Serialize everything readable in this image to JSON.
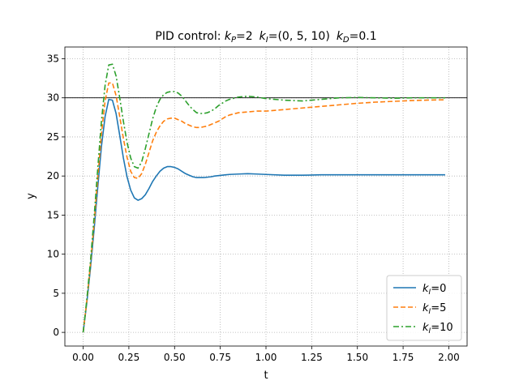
{
  "chart_data": {
    "type": "line",
    "title": "PID control: k_P=2  k_I=(0, 5, 10)  k_D=0.1",
    "title_parts": {
      "prefix": "PID control: ",
      "kp_symbol": "k",
      "kp_sub": "P",
      "kp_value": "=2",
      "ki_symbol": "k",
      "ki_sub": "I",
      "ki_value": "=(0, 5, 10)",
      "kd_symbol": "k",
      "kd_sub": "D",
      "kd_value": "=0.1"
    },
    "xlabel": "t",
    "ylabel": "y",
    "xlim": [
      -0.1,
      2.1
    ],
    "ylim": [
      -1.75,
      36.5
    ],
    "xticks": [
      0.0,
      0.25,
      0.5,
      0.75,
      1.0,
      1.25,
      1.5,
      1.75,
      2.0
    ],
    "xtick_labels": [
      "0.00",
      "0.25",
      "0.50",
      "0.75",
      "1.00",
      "1.25",
      "1.50",
      "1.75",
      "2.00"
    ],
    "yticks": [
      0,
      5,
      10,
      15,
      20,
      25,
      30,
      35
    ],
    "ytick_labels": [
      "0",
      "5",
      "10",
      "15",
      "20",
      "25",
      "30",
      "35"
    ],
    "grid": true,
    "reference_line": {
      "y": 30,
      "color": "#000000"
    },
    "legend_placement": "lower-right",
    "series": [
      {
        "name": "k_I=0",
        "legend_symbol": "k",
        "legend_sub": "I",
        "legend_value": "=0",
        "color": "#1f77b4",
        "dash": "solid",
        "x": [
          0,
          0.02,
          0.04,
          0.06,
          0.08,
          0.1,
          0.12,
          0.14,
          0.16,
          0.18,
          0.2,
          0.22,
          0.24,
          0.26,
          0.28,
          0.3,
          0.32,
          0.34,
          0.36,
          0.38,
          0.4,
          0.42,
          0.44,
          0.46,
          0.48,
          0.5,
          0.52,
          0.54,
          0.56,
          0.58,
          0.6,
          0.62,
          0.64,
          0.66,
          0.68,
          0.7,
          0.72,
          0.74,
          0.76,
          0.78,
          0.8,
          0.85,
          0.9,
          0.95,
          1.0,
          1.1,
          1.2,
          1.3,
          1.4,
          1.5,
          1.6,
          1.7,
          1.8,
          1.9,
          1.98
        ],
        "values": [
          0,
          3.8,
          8.2,
          13.2,
          18.6,
          23.8,
          27.6,
          29.8,
          29.7,
          28.0,
          25.2,
          22.3,
          19.9,
          18.2,
          17.2,
          16.9,
          17.1,
          17.6,
          18.4,
          19.3,
          20.0,
          20.6,
          21.0,
          21.2,
          21.2,
          21.1,
          20.9,
          20.6,
          20.3,
          20.1,
          19.9,
          19.8,
          19.8,
          19.8,
          19.85,
          19.9,
          20.0,
          20.05,
          20.1,
          20.15,
          20.2,
          20.25,
          20.3,
          20.25,
          20.2,
          20.1,
          20.1,
          20.15,
          20.15,
          20.15,
          20.15,
          20.15,
          20.15,
          20.15,
          20.15
        ]
      },
      {
        "name": "k_I=5",
        "legend_symbol": "k",
        "legend_sub": "I",
        "legend_value": "=5",
        "color": "#ff7f0e",
        "dash": "dashed",
        "x": [
          0,
          0.02,
          0.04,
          0.06,
          0.08,
          0.1,
          0.12,
          0.14,
          0.16,
          0.18,
          0.2,
          0.22,
          0.24,
          0.26,
          0.28,
          0.3,
          0.32,
          0.34,
          0.36,
          0.38,
          0.4,
          0.42,
          0.44,
          0.46,
          0.48,
          0.5,
          0.52,
          0.54,
          0.56,
          0.58,
          0.6,
          0.62,
          0.64,
          0.66,
          0.68,
          0.7,
          0.72,
          0.74,
          0.76,
          0.78,
          0.8,
          0.85,
          0.9,
          0.95,
          1.0,
          1.1,
          1.2,
          1.3,
          1.4,
          1.5,
          1.6,
          1.7,
          1.8,
          1.9,
          1.98
        ],
        "values": [
          0,
          4.0,
          8.7,
          14.0,
          19.8,
          25.4,
          29.6,
          31.9,
          31.9,
          30.3,
          27.6,
          24.8,
          22.4,
          20.6,
          19.8,
          19.7,
          20.3,
          21.5,
          23.0,
          24.5,
          25.6,
          26.4,
          27.0,
          27.3,
          27.4,
          27.4,
          27.2,
          27.0,
          26.7,
          26.5,
          26.3,
          26.2,
          26.2,
          26.3,
          26.4,
          26.6,
          26.8,
          27.0,
          27.3,
          27.6,
          27.8,
          28.1,
          28.2,
          28.3,
          28.3,
          28.5,
          28.7,
          28.9,
          29.1,
          29.3,
          29.45,
          29.55,
          29.65,
          29.72,
          29.75
        ]
      },
      {
        "name": "k_I=10",
        "legend_symbol": "k",
        "legend_sub": "I",
        "legend_value": "=10",
        "color": "#2ca02c",
        "dash": "dashdot",
        "x": [
          0,
          0.02,
          0.04,
          0.06,
          0.08,
          0.1,
          0.12,
          0.14,
          0.16,
          0.18,
          0.2,
          0.22,
          0.24,
          0.26,
          0.28,
          0.3,
          0.32,
          0.34,
          0.36,
          0.38,
          0.4,
          0.42,
          0.44,
          0.46,
          0.48,
          0.5,
          0.52,
          0.54,
          0.56,
          0.58,
          0.6,
          0.62,
          0.64,
          0.66,
          0.68,
          0.7,
          0.72,
          0.74,
          0.76,
          0.78,
          0.8,
          0.85,
          0.9,
          0.95,
          1.0,
          1.1,
          1.2,
          1.3,
          1.4,
          1.5,
          1.6,
          1.7,
          1.8,
          1.9,
          1.98
        ],
        "values": [
          0,
          4.2,
          9.1,
          14.8,
          21.0,
          27.0,
          31.6,
          34.2,
          34.3,
          32.8,
          30.0,
          27.0,
          24.3,
          22.3,
          21.2,
          21.0,
          21.8,
          23.5,
          25.4,
          27.3,
          28.8,
          29.8,
          30.4,
          30.7,
          30.8,
          30.8,
          30.6,
          30.2,
          29.6,
          29.0,
          28.5,
          28.1,
          28.0,
          28.0,
          28.1,
          28.3,
          28.6,
          29.0,
          29.3,
          29.6,
          29.8,
          30.1,
          30.2,
          30.1,
          29.9,
          29.7,
          29.6,
          29.8,
          30.0,
          30.05,
          30.0,
          29.95,
          30.0,
          30.0,
          30.0
        ]
      }
    ]
  }
}
